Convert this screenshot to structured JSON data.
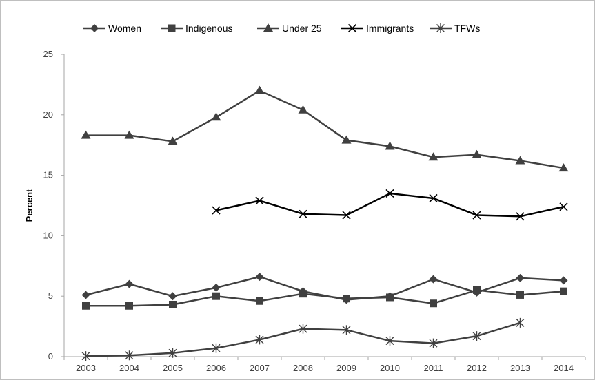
{
  "chart_data": {
    "type": "line",
    "x": [
      "2003",
      "2004",
      "2005",
      "2006",
      "2007",
      "2008",
      "2009",
      "2010",
      "2011",
      "2012",
      "2013",
      "2014"
    ],
    "ylabel": "Percent",
    "xlabel": "",
    "ylim": [
      0,
      25
    ],
    "yticks": [
      0,
      5,
      10,
      15,
      20,
      25
    ],
    "grid": false,
    "legend": "top",
    "series": [
      {
        "name": "Women",
        "marker": "diamond",
        "color": "#404040",
        "values": [
          5.1,
          6.0,
          5.0,
          5.7,
          6.6,
          5.4,
          4.7,
          5.0,
          6.4,
          5.3,
          6.5,
          6.3
        ]
      },
      {
        "name": "Indigenous",
        "marker": "square",
        "color": "#404040",
        "values": [
          4.2,
          4.2,
          4.3,
          5.0,
          4.6,
          5.2,
          4.8,
          4.9,
          4.4,
          5.5,
          5.1,
          5.4
        ]
      },
      {
        "name": "Under 25",
        "marker": "triangle",
        "color": "#404040",
        "values": [
          18.3,
          18.3,
          17.8,
          19.8,
          22.0,
          20.4,
          17.9,
          17.4,
          16.5,
          16.7,
          16.2,
          15.6
        ]
      },
      {
        "name": "Immigrants",
        "marker": "x",
        "color": "#000000",
        "values": [
          null,
          null,
          null,
          12.1,
          12.9,
          11.8,
          11.7,
          13.5,
          13.1,
          11.7,
          11.6,
          12.4
        ]
      },
      {
        "name": "TFWs",
        "marker": "star",
        "color": "#404040",
        "values": [
          0.05,
          0.1,
          0.3,
          0.7,
          1.4,
          2.3,
          2.2,
          1.3,
          1.1,
          1.7,
          2.8,
          null
        ]
      }
    ]
  }
}
